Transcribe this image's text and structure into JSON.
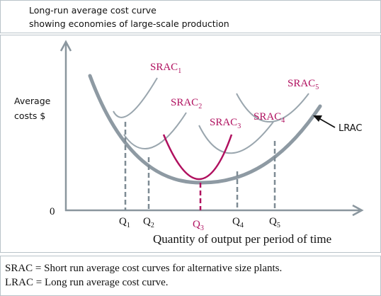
{
  "title": {
    "line1": "Long-run average cost curve",
    "line2": "showing economies of large-scale production"
  },
  "diagram": {
    "y_axis_label_line1": "Average",
    "y_axis_label_line2": "costs $",
    "origin_label": "0",
    "x_axis_label": "Quantity of output per period of time",
    "lrac_label": "LRAC",
    "srac_labels": [
      {
        "base": "SRAC",
        "sub": "1"
      },
      {
        "base": "SRAC",
        "sub": "2"
      },
      {
        "base": "SRAC",
        "sub": "3"
      },
      {
        "base": "SRAC",
        "sub": "4"
      },
      {
        "base": "SRAC",
        "sub": "5"
      }
    ],
    "q_labels": [
      {
        "base": "Q",
        "sub": "1"
      },
      {
        "base": "Q",
        "sub": "2"
      },
      {
        "base": "Q",
        "sub": "3"
      },
      {
        "base": "Q",
        "sub": "4"
      },
      {
        "base": "Q",
        "sub": "5"
      }
    ],
    "colors": {
      "lrac": "#8e9aa3",
      "srac": "#9aa6ae",
      "highlight": "#b0105f",
      "axis": "#8a969e",
      "text_default": "#111111"
    }
  },
  "legend": {
    "line1": "SRAC = Short run average cost curves for alternative size plants.",
    "line2": "LRAC = Long run average cost curve."
  }
}
